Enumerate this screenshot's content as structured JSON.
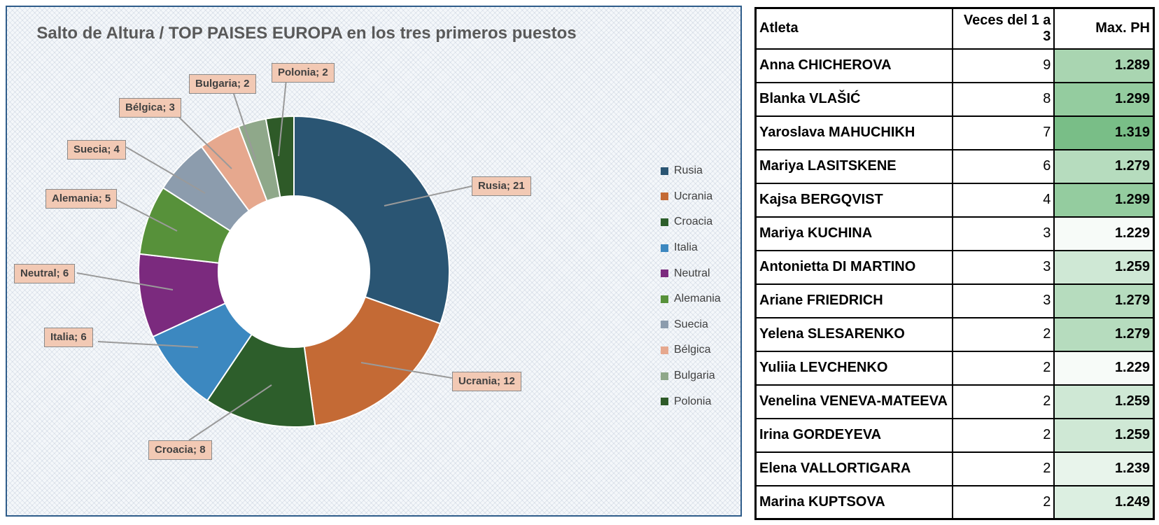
{
  "chart_data": {
    "type": "pie",
    "subtype": "doughnut",
    "title": "Salto de Altura / TOP  PAISES EUROPA en los tres primeros puestos",
    "categories": [
      "Rusia",
      "Ucrania",
      "Croacia",
      "Italia",
      "Neutral",
      "Alemania",
      "Suecia",
      "Bélgica",
      "Bulgaria",
      "Polonia"
    ],
    "values": [
      21,
      12,
      8,
      6,
      6,
      5,
      4,
      3,
      2,
      2
    ],
    "colors": [
      "#2a5573",
      "#c46a35",
      "#2d5e2b",
      "#3c88c0",
      "#7b2a7e",
      "#57913a",
      "#8c9cad",
      "#e6a88e",
      "#8fa88a",
      "#2e5a28"
    ],
    "data_labels": [
      "Rusia; 21",
      "Ucrania; 12",
      "Croacia; 8",
      "Italia; 6",
      "Neutral; 6",
      "Alemania; 5",
      "Suecia; 4",
      "Bélgica; 3",
      "Bulgaria; 2",
      "Polonia; 2"
    ],
    "legend_position": "right"
  },
  "table": {
    "headers": [
      "Atleta",
      "Veces del 1 a 3",
      "Max. PH"
    ],
    "rows": [
      {
        "name": "Anna CHICHEROVA",
        "count": "9",
        "ph": "1.289",
        "color": "#a9d5b1"
      },
      {
        "name": "Blanka VLAŠIĆ",
        "count": "8",
        "ph": "1.299",
        "color": "#94cc9f"
      },
      {
        "name": "Yaroslava MAHUCHIKH",
        "count": "7",
        "ph": "1.319",
        "color": "#79be87"
      },
      {
        "name": "Mariya LASITSKENE",
        "count": "6",
        "ph": "1.279",
        "color": "#b6dcbe"
      },
      {
        "name": "Kajsa BERGQVIST",
        "count": "4",
        "ph": "1.299",
        "color": "#94cc9f"
      },
      {
        "name": "Mariya KUCHINA",
        "count": "3",
        "ph": "1.229",
        "color": "#f7fbf8"
      },
      {
        "name": "Antonietta DI MARTINO",
        "count": "3",
        "ph": "1.259",
        "color": "#cfe8d5"
      },
      {
        "name": "Ariane FRIEDRICH",
        "count": "3",
        "ph": "1.279",
        "color": "#b6dcbe"
      },
      {
        "name": "Yelena SLESARENKO",
        "count": "2",
        "ph": "1.279",
        "color": "#b6dcbe"
      },
      {
        "name": "Yuliia LEVCHENKO",
        "count": "2",
        "ph": "1.229",
        "color": "#f7fbf8"
      },
      {
        "name": "Venelina VENEVA-MATEEVA",
        "count": "2",
        "ph": "1.259",
        "color": "#cfe8d5"
      },
      {
        "name": "Irina GORDEYEVA",
        "count": "2",
        "ph": "1.259",
        "color": "#cfe8d5"
      },
      {
        "name": "Elena VALLORTIGARA",
        "count": "2",
        "ph": "1.239",
        "color": "#e8f4eb"
      },
      {
        "name": "Marina KUPTSOVA",
        "count": "2",
        "ph": "1.249",
        "color": "#dcefe1"
      }
    ]
  }
}
